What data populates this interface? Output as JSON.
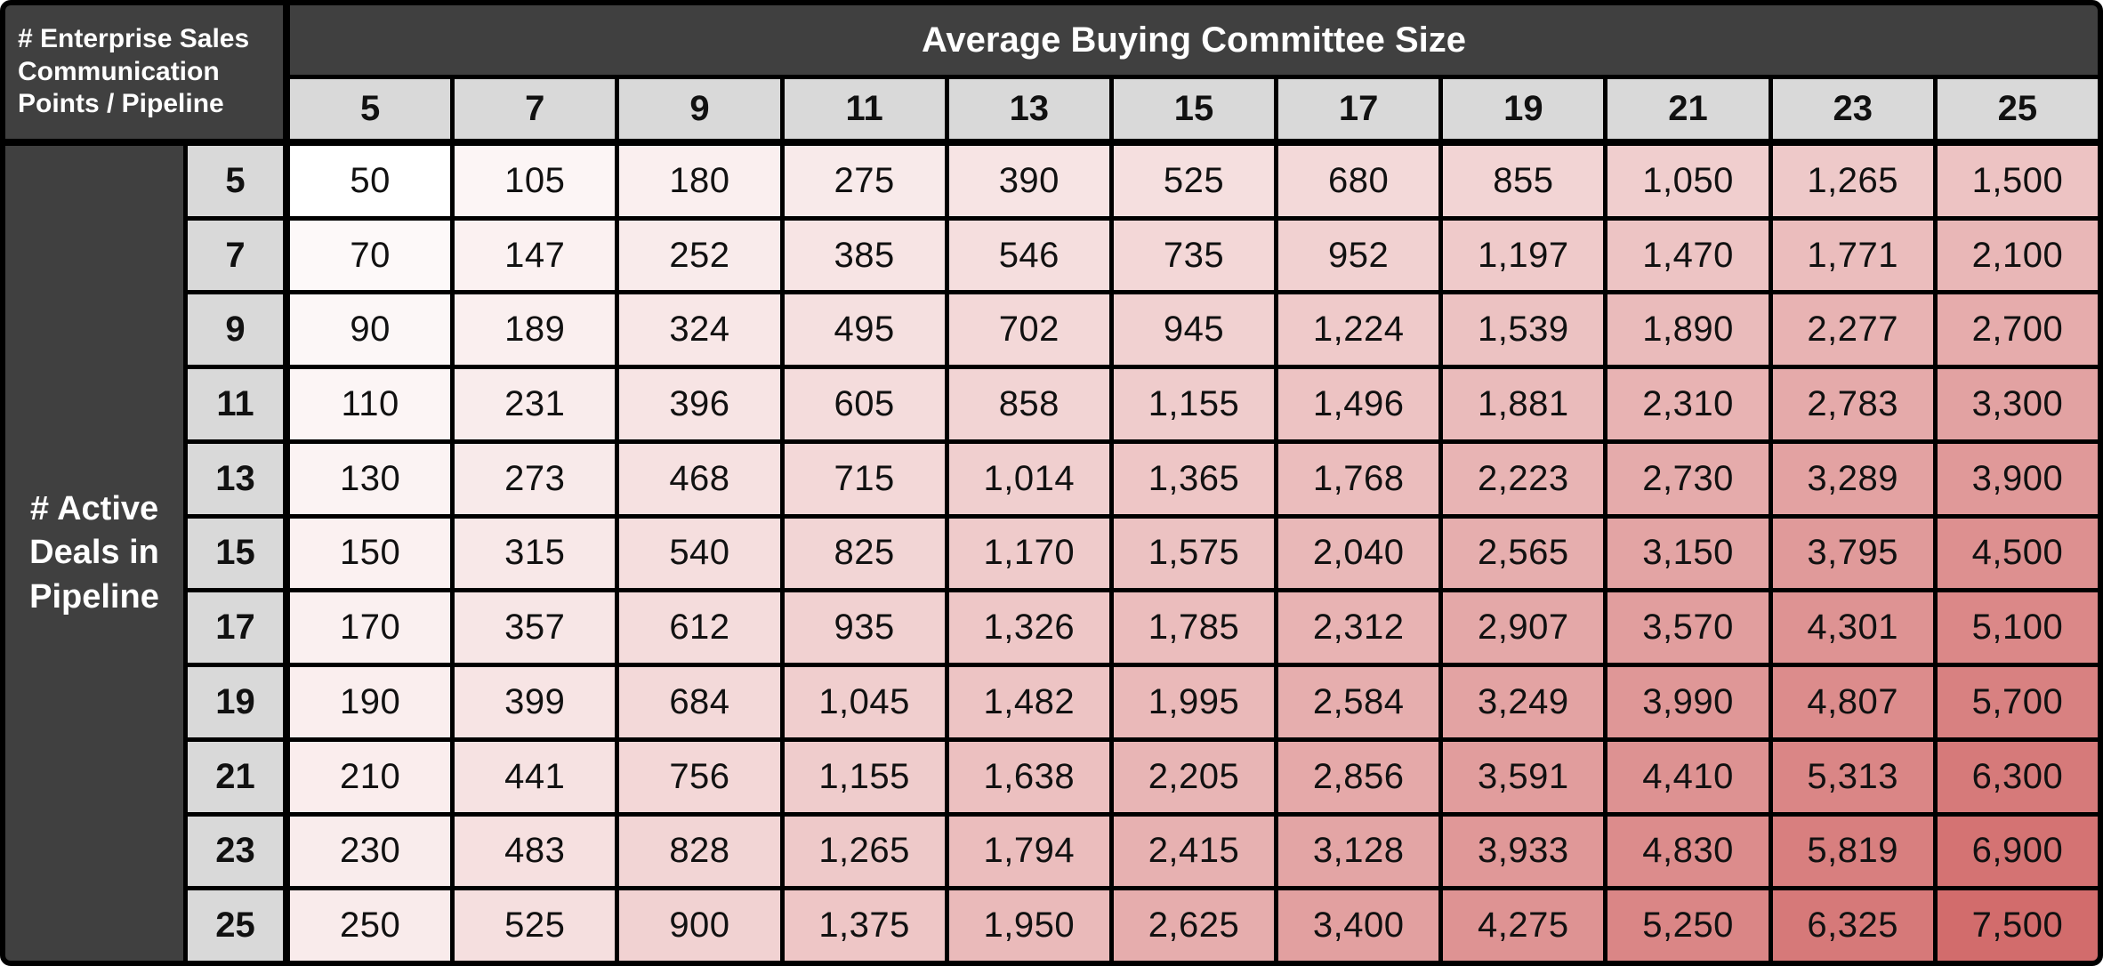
{
  "chart_data": {
    "type": "heatmap",
    "title": "Average Buying Committee Size",
    "corner_label": "# Enterprise Sales\nCommunication\nPoints / Pipeline",
    "row_axis_label": "# Active\nDeals in\nPipeline",
    "x_categories": [
      5,
      7,
      9,
      11,
      13,
      15,
      17,
      19,
      21,
      23,
      25
    ],
    "y_categories": [
      5,
      7,
      9,
      11,
      13,
      15,
      17,
      19,
      21,
      23,
      25
    ],
    "values": [
      [
        50,
        105,
        180,
        275,
        390,
        525,
        680,
        855,
        1050,
        1265,
        1500
      ],
      [
        70,
        147,
        252,
        385,
        546,
        735,
        952,
        1197,
        1470,
        1771,
        2100
      ],
      [
        90,
        189,
        324,
        495,
        702,
        945,
        1224,
        1539,
        1890,
        2277,
        2700
      ],
      [
        110,
        231,
        396,
        605,
        858,
        1155,
        1496,
        1881,
        2310,
        2783,
        3300
      ],
      [
        130,
        273,
        468,
        715,
        1014,
        1365,
        1768,
        2223,
        2730,
        3289,
        3900
      ],
      [
        150,
        315,
        540,
        825,
        1170,
        1575,
        2040,
        2565,
        3150,
        3795,
        4500
      ],
      [
        170,
        357,
        612,
        935,
        1326,
        1785,
        2312,
        2907,
        3570,
        4301,
        5100
      ],
      [
        190,
        399,
        684,
        1045,
        1482,
        1995,
        2584,
        3249,
        3990,
        4807,
        5700
      ],
      [
        210,
        441,
        756,
        1155,
        1638,
        2205,
        2856,
        3591,
        4410,
        5313,
        6300
      ],
      [
        230,
        483,
        828,
        1265,
        1794,
        2415,
        3128,
        3933,
        4830,
        5819,
        6900
      ],
      [
        250,
        525,
        900,
        1375,
        1950,
        2625,
        3400,
        4275,
        5250,
        6325,
        7500
      ]
    ],
    "number_format": "thousands-comma",
    "colorscale": {
      "min_value": 50,
      "max_value": 7500,
      "min_color": "#FFFFFF",
      "max_color": "#D26C6C",
      "exponent": 0.55
    },
    "legend_position": "none",
    "grid": true
  },
  "colors": {
    "header_bg": "#404040",
    "header_text": "#FFFFFF",
    "subheader_bg": "#D9D9D9",
    "grid_border": "#000000",
    "cell_text": "#111111"
  }
}
